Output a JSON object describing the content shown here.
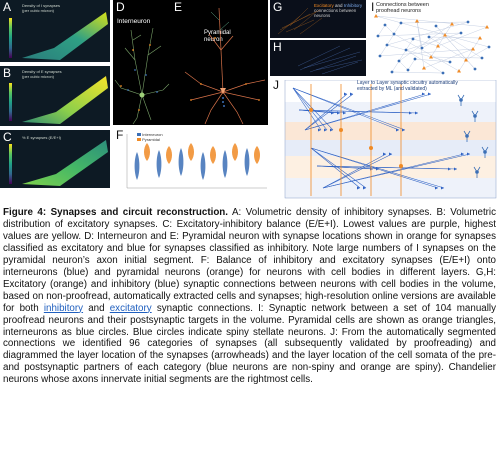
{
  "panels": {
    "A": {
      "label": "A",
      "title": "Density of I synapses",
      "unit": "(per cubic micron)"
    },
    "B": {
      "label": "B",
      "title": "Density of E synapses",
      "unit": "(per cubic micron)"
    },
    "C": {
      "label": "C",
      "title": "% E synapses (E/E+I)"
    },
    "D": {
      "label": "D",
      "title": "Interneuron"
    },
    "E": {
      "label": "E",
      "title": "Pyramidal neuron"
    },
    "F": {
      "label": "F",
      "legend": [
        "Interneuron",
        "Pyramidal"
      ]
    },
    "G": {
      "label": "G",
      "title_parts": [
        "Excitatory",
        "and",
        "Inhibitory"
      ],
      "subtitle": "connections between neurons"
    },
    "H": {
      "label": "H"
    },
    "I": {
      "label": "I",
      "title": "Connections between proofread neurons"
    },
    "J": {
      "label": "J",
      "title": "Layer to Layer synaptic circuitry automatically extracted by ML (and validated)"
    }
  },
  "colors": {
    "excitatory": "#f08a24",
    "inhibitory": "#3b6fb6",
    "link": "#1f5fbf"
  },
  "caption": {
    "fig_label": "Figure 4: Synapses and circuit reconstruction.",
    "p1": " A: Volumetric density of inhibitory synapses. B: Volumetric distribution of excitatory synapses. C: Excitatory-inhibitory balance (E/E+I). Lowest values are purple, highest values are yellow. D: Interneuron and E: Pyramidal neuron with synapse locations shown in orange for synapses classified as excitatory and blue for synapses classified as inhibitory. Note large numbers of I synapses on the pyramidal neuron’s axon initial segment. F: Balance of inhibitory and excitatory synapses (E/E+I) onto interneurons (blue) and pyramidal neurons (orange) for neurons with cell bodies in different layers. G,H: Excitatory (orange) and inhibitory (blue) synaptic connections between neurons with cell bodies in the volume, based on non-proofread, automatically extracted cells and synapses; high-resolution online versions are available for both ",
    "link1": "inhibitory",
    "and": " and ",
    "link2": "excitatory",
    "p2": " synaptic connections. I: Synaptic network between a set of 104 manually proofread neurons and their postsynaptic targets in the volume. Pyramidal cells are shown as orange triangles, interneurons as blue circles. Blue circles indicate spiny stellate neurons. J: From the automatically segmented connections we identified 96 categories of synapses (all subsequently validated by proofreading) and diagrammed the layer location of the synapses (arrowheads) and the layer location of the cell somata of the pre- and postsynaptic partners of each category (blue neurons are non-spiny and orange are spiny). Chandelier neurons whose axons innervate initial segments are the rightmost cells."
  }
}
